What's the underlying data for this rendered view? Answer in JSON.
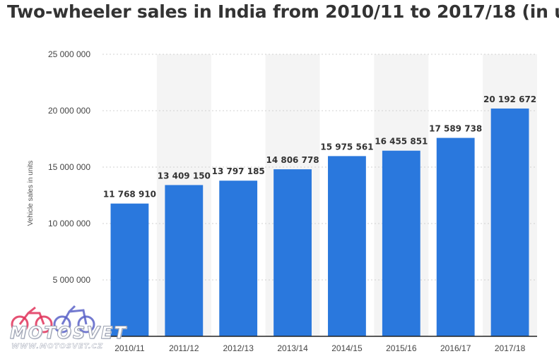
{
  "title": "Two-wheeler sales in India from 2010/11 to 2017/18 (in u",
  "chart_data": {
    "type": "bar",
    "title": "Two-wheeler sales in India from 2010/11 to 2017/18 (in u",
    "xlabel": "",
    "ylabel": "Vehicle sales in units",
    "ylim": [
      0,
      25000000
    ],
    "yticks": [
      0,
      5000000,
      10000000,
      15000000,
      20000000,
      25000000
    ],
    "ytick_labels": [
      "",
      "5 000 000",
      "10 000 000",
      "15 000 000",
      "20 000 000",
      "25 000 000"
    ],
    "categories": [
      "2010/11",
      "2011/12",
      "2012/13",
      "2013/14",
      "2014/15",
      "2015/16",
      "2016/17",
      "2017/18"
    ],
    "values": [
      11768910,
      13409150,
      13797185,
      14806778,
      15975561,
      16455851,
      17589738,
      20192672
    ],
    "data_labels": [
      "11 768 910",
      "13 409 150",
      "13 797 185",
      "14 806 778",
      "15 975 561",
      "16 455 851",
      "17 589 738",
      "20 192 672"
    ],
    "bar_color": "#2a78dd",
    "band_color": "#f4f4f4",
    "grid": true,
    "legend": "none"
  },
  "watermark": {
    "name": "MOTOSVET",
    "url": "WWW.MOTOSVET.CZ",
    "icon": "motorcycle-icon",
    "colors": [
      "#e0335a",
      "#5b63c8"
    ]
  }
}
